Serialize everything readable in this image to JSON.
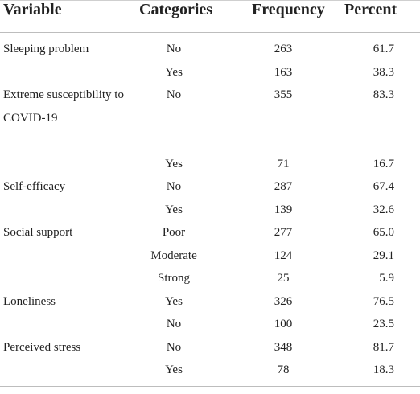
{
  "table": {
    "headers": {
      "variable": "Variable",
      "categories": "Categories",
      "frequency": "Frequency",
      "percent": "Percent"
    },
    "rows": [
      {
        "variable": "Sleeping problem",
        "category": "No",
        "frequency": "263",
        "percent": "61.7"
      },
      {
        "variable": "",
        "category": "Yes",
        "frequency": "163",
        "percent": "38.3"
      },
      {
        "variable": "Extreme susceptibility to COVID-19",
        "category": "No",
        "frequency": "355",
        "percent": "83.3"
      },
      {
        "variable": "",
        "category": "Yes",
        "frequency": "71",
        "percent": "16.7"
      },
      {
        "variable": "Self-efficacy",
        "category": "No",
        "frequency": "287",
        "percent": "67.4"
      },
      {
        "variable": "",
        "category": "Yes",
        "frequency": "139",
        "percent": "32.6"
      },
      {
        "variable": "Social support",
        "category": "Poor",
        "frequency": "277",
        "percent": "65.0"
      },
      {
        "variable": "",
        "category": "Moderate",
        "frequency": "124",
        "percent": "29.1"
      },
      {
        "variable": "",
        "category": "Strong",
        "frequency": "25",
        "percent": "5.9"
      },
      {
        "variable": "Loneliness",
        "category": "Yes",
        "frequency": "326",
        "percent": "76.5"
      },
      {
        "variable": "",
        "category": "No",
        "frequency": "100",
        "percent": "23.5"
      },
      {
        "variable": "Perceived stress",
        "category": "No",
        "frequency": "348",
        "percent": "81.7"
      },
      {
        "variable": "",
        "category": "Yes",
        "frequency": "78",
        "percent": "18.3"
      }
    ]
  }
}
